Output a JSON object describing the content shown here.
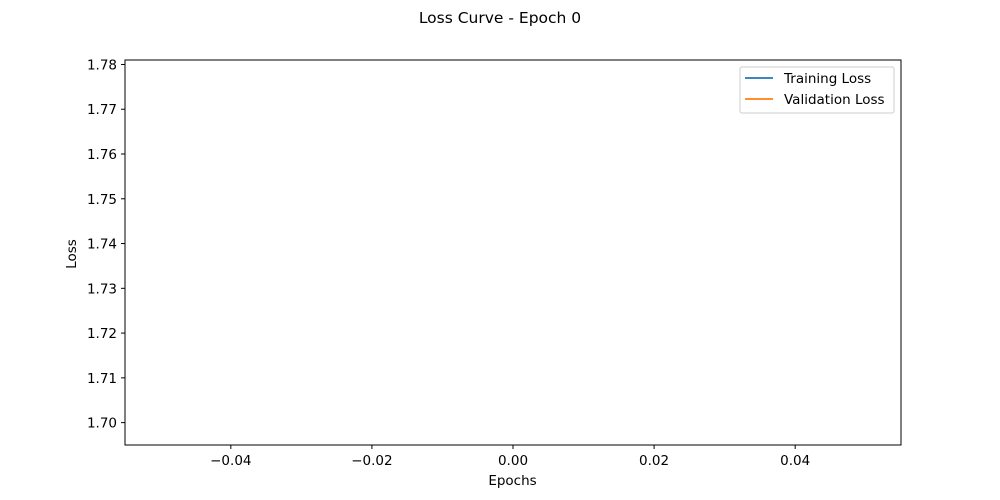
{
  "chart_data": {
    "type": "line",
    "title": "Loss Curve - Epoch 0",
    "xlabel": "Epochs",
    "ylabel": "Loss",
    "xlim": [
      -0.055,
      0.055
    ],
    "ylim": [
      1.695,
      1.781
    ],
    "xticks": [
      -0.04,
      -0.02,
      0.0,
      0.02,
      0.04
    ],
    "xtick_labels": [
      "−0.04",
      "−0.02",
      "0.00",
      "0.02",
      "0.04"
    ],
    "yticks": [
      1.7,
      1.71,
      1.72,
      1.73,
      1.74,
      1.75,
      1.76,
      1.77,
      1.78
    ],
    "ytick_labels": [
      "1.70",
      "1.71",
      "1.72",
      "1.73",
      "1.74",
      "1.75",
      "1.76",
      "1.77",
      "1.78"
    ],
    "grid": false,
    "legend_position": "top-right",
    "series": [
      {
        "name": "Training Loss",
        "color": "#1f77b4",
        "x": [],
        "y": []
      },
      {
        "name": "Validation Loss",
        "color": "#ff7f0e",
        "x": [],
        "y": []
      }
    ]
  }
}
